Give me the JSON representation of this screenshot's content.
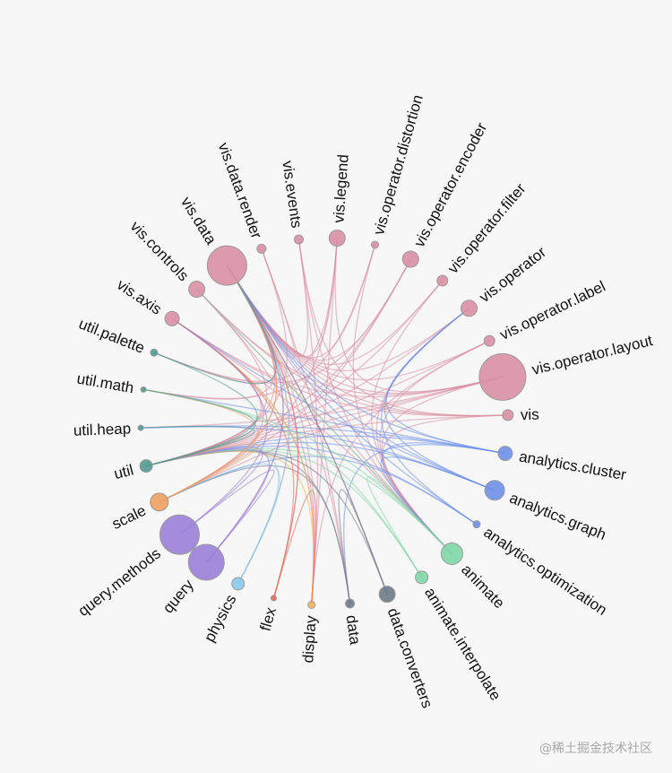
{
  "watermark": "@稀土掘金技术社区",
  "colors": {
    "vis": "#d98fa4",
    "analytics": "#6e8fe8",
    "animate": "#7fd6a6",
    "data": "#6f7a88",
    "display": "#f0b45a",
    "flex": "#e06a55",
    "physics": "#8ac8ec",
    "query": "#9a7fd9",
    "scale": "#f0a060",
    "util": "#4f9a90"
  },
  "nodes": [
    {
      "id": "vis.operator.layout",
      "group": "vis",
      "size": 26
    },
    {
      "id": "vis",
      "group": "vis",
      "size": 6
    },
    {
      "id": "analytics.cluster",
      "group": "analytics",
      "size": 8
    },
    {
      "id": "analytics.graph",
      "group": "analytics",
      "size": 11
    },
    {
      "id": "analytics.optimization",
      "group": "analytics",
      "size": 4
    },
    {
      "id": "animate",
      "group": "animate",
      "size": 12
    },
    {
      "id": "animate.interpolate",
      "group": "animate",
      "size": 7
    },
    {
      "id": "data.converters",
      "group": "data",
      "size": 9
    },
    {
      "id": "data",
      "group": "data",
      "size": 5
    },
    {
      "id": "display",
      "group": "display",
      "size": 4
    },
    {
      "id": "flex",
      "group": "flex",
      "size": 2
    },
    {
      "id": "physics",
      "group": "physics",
      "size": 7
    },
    {
      "id": "query",
      "group": "query",
      "size": 20
    },
    {
      "id": "query.methods",
      "group": "query",
      "size": 22
    },
    {
      "id": "scale",
      "group": "scale",
      "size": 10
    },
    {
      "id": "util",
      "group": "util",
      "size": 7
    },
    {
      "id": "util.heap",
      "group": "util",
      "size": 3
    },
    {
      "id": "util.math",
      "group": "util",
      "size": 3
    },
    {
      "id": "util.palette",
      "group": "util",
      "size": 4
    },
    {
      "id": "vis.axis",
      "group": "vis",
      "size": 8
    },
    {
      "id": "vis.controls",
      "group": "vis",
      "size": 9
    },
    {
      "id": "vis.data",
      "group": "vis",
      "size": 22
    },
    {
      "id": "vis.data.render",
      "group": "vis",
      "size": 5
    },
    {
      "id": "vis.events",
      "group": "vis",
      "size": 5
    },
    {
      "id": "vis.legend",
      "group": "vis",
      "size": 9
    },
    {
      "id": "vis.operator.distortion",
      "group": "vis",
      "size": 4
    },
    {
      "id": "vis.operator.encoder",
      "group": "vis",
      "size": 9
    },
    {
      "id": "vis.operator.filter",
      "group": "vis",
      "size": 6
    },
    {
      "id": "vis.operator",
      "group": "vis",
      "size": 9
    },
    {
      "id": "vis.operator.label",
      "group": "vis",
      "size": 6
    }
  ],
  "links": [
    [
      "vis.operator.layout",
      "vis.data"
    ],
    [
      "vis.operator.layout",
      "vis.axis"
    ],
    [
      "vis.operator.layout",
      "util"
    ],
    [
      "vis.operator.layout",
      "animate"
    ],
    [
      "vis.operator.layout",
      "scale"
    ],
    [
      "vis.operator.layout",
      "vis.controls"
    ],
    [
      "vis.operator.layout",
      "vis.legend"
    ],
    [
      "vis.operator.layout",
      "util.heap"
    ],
    [
      "vis",
      "vis.data"
    ],
    [
      "vis",
      "vis.axis"
    ],
    [
      "vis",
      "animate"
    ],
    [
      "vis",
      "vis.controls"
    ],
    [
      "vis",
      "vis.events"
    ],
    [
      "vis",
      "util"
    ],
    [
      "vis.data",
      "util"
    ],
    [
      "vis.data",
      "scale"
    ],
    [
      "vis.data",
      "query"
    ],
    [
      "vis.data",
      "data"
    ],
    [
      "vis.data",
      "physics"
    ],
    [
      "vis.data",
      "util.math"
    ],
    [
      "vis.data",
      "util.palette"
    ],
    [
      "vis.data",
      "animate"
    ],
    [
      "vis.data",
      "vis.events"
    ],
    [
      "vis.data",
      "vis.data.render"
    ],
    [
      "vis.data",
      "display"
    ],
    [
      "vis.data",
      "flex"
    ],
    [
      "vis.data",
      "data.converters"
    ],
    [
      "vis.axis",
      "display"
    ],
    [
      "vis.axis",
      "scale"
    ],
    [
      "vis.axis",
      "util"
    ],
    [
      "vis.axis",
      "animate"
    ],
    [
      "vis.controls",
      "animate"
    ],
    [
      "vis.controls",
      "display"
    ],
    [
      "vis.controls",
      "util"
    ],
    [
      "vis.legend",
      "vis.data"
    ],
    [
      "vis.legend",
      "display"
    ],
    [
      "vis.legend",
      "scale"
    ],
    [
      "vis.legend",
      "util.palette"
    ],
    [
      "vis.operator",
      "vis.data"
    ],
    [
      "vis.operator",
      "animate"
    ],
    [
      "vis.operator",
      "util"
    ],
    [
      "vis.operator.encoder",
      "vis.data"
    ],
    [
      "vis.operator.encoder",
      "util.palette"
    ],
    [
      "vis.operator.encoder",
      "scale"
    ],
    [
      "vis.operator.encoder",
      "util"
    ],
    [
      "vis.operator.filter",
      "vis.data"
    ],
    [
      "vis.operator.filter",
      "util"
    ],
    [
      "vis.operator.filter",
      "animate"
    ],
    [
      "vis.operator.distortion",
      "vis.data"
    ],
    [
      "vis.operator.distortion",
      "animate"
    ],
    [
      "vis.operator.distortion",
      "util.math"
    ],
    [
      "vis.operator.label",
      "vis.data"
    ],
    [
      "vis.operator.label",
      "display"
    ],
    [
      "vis.operator.label",
      "util"
    ],
    [
      "vis.operator.label",
      "animate"
    ],
    [
      "vis.data.render",
      "util"
    ],
    [
      "vis.data.render",
      "data"
    ],
    [
      "vis.events",
      "display"
    ],
    [
      "vis.events",
      "animate"
    ],
    [
      "analytics.cluster",
      "vis.data"
    ],
    [
      "analytics.cluster",
      "vis.operator"
    ],
    [
      "analytics.cluster",
      "util.math"
    ],
    [
      "analytics.cluster",
      "util.heap"
    ],
    [
      "analytics.cluster",
      "util"
    ],
    [
      "analytics.cluster",
      "animate"
    ],
    [
      "analytics.cluster",
      "data"
    ],
    [
      "analytics.graph",
      "vis.data"
    ],
    [
      "analytics.graph",
      "vis.operator"
    ],
    [
      "analytics.graph",
      "util"
    ],
    [
      "analytics.graph",
      "animate"
    ],
    [
      "analytics.graph",
      "util.heap"
    ],
    [
      "analytics.graph",
      "vis.axis"
    ],
    [
      "analytics.optimization",
      "vis.data"
    ],
    [
      "analytics.optimization",
      "vis.operator"
    ],
    [
      "analytics.optimization",
      "util"
    ],
    [
      "analytics.optimization",
      "scale"
    ],
    [
      "animate",
      "util"
    ],
    [
      "animate",
      "animate.interpolate"
    ],
    [
      "animate",
      "util.math"
    ],
    [
      "animate",
      "vis.controls"
    ],
    [
      "animate.interpolate",
      "util"
    ],
    [
      "animate.interpolate",
      "util.math"
    ],
    [
      "data.converters",
      "data"
    ],
    [
      "data.converters",
      "util"
    ],
    [
      "data.converters",
      "vis.data"
    ],
    [
      "data",
      "util"
    ],
    [
      "data",
      "scale"
    ],
    [
      "display",
      "util"
    ],
    [
      "display",
      "vis.axis"
    ],
    [
      "flex",
      "vis.data"
    ],
    [
      "flex",
      "display"
    ],
    [
      "flex",
      "vis.axis"
    ],
    [
      "physics",
      "util"
    ],
    [
      "physics",
      "vis.data"
    ],
    [
      "physics",
      "scale"
    ],
    [
      "query",
      "util"
    ],
    [
      "query",
      "vis.data"
    ],
    [
      "query",
      "query.methods"
    ],
    [
      "query.methods",
      "util"
    ],
    [
      "query.methods",
      "vis.axis"
    ],
    [
      "scale",
      "util"
    ],
    [
      "scale",
      "util.math"
    ],
    [
      "scale",
      "vis.data"
    ],
    [
      "util",
      "util.math"
    ],
    [
      "util",
      "util.palette"
    ],
    [
      "util",
      "util.heap"
    ],
    [
      "util.palette",
      "vis.data"
    ]
  ]
}
